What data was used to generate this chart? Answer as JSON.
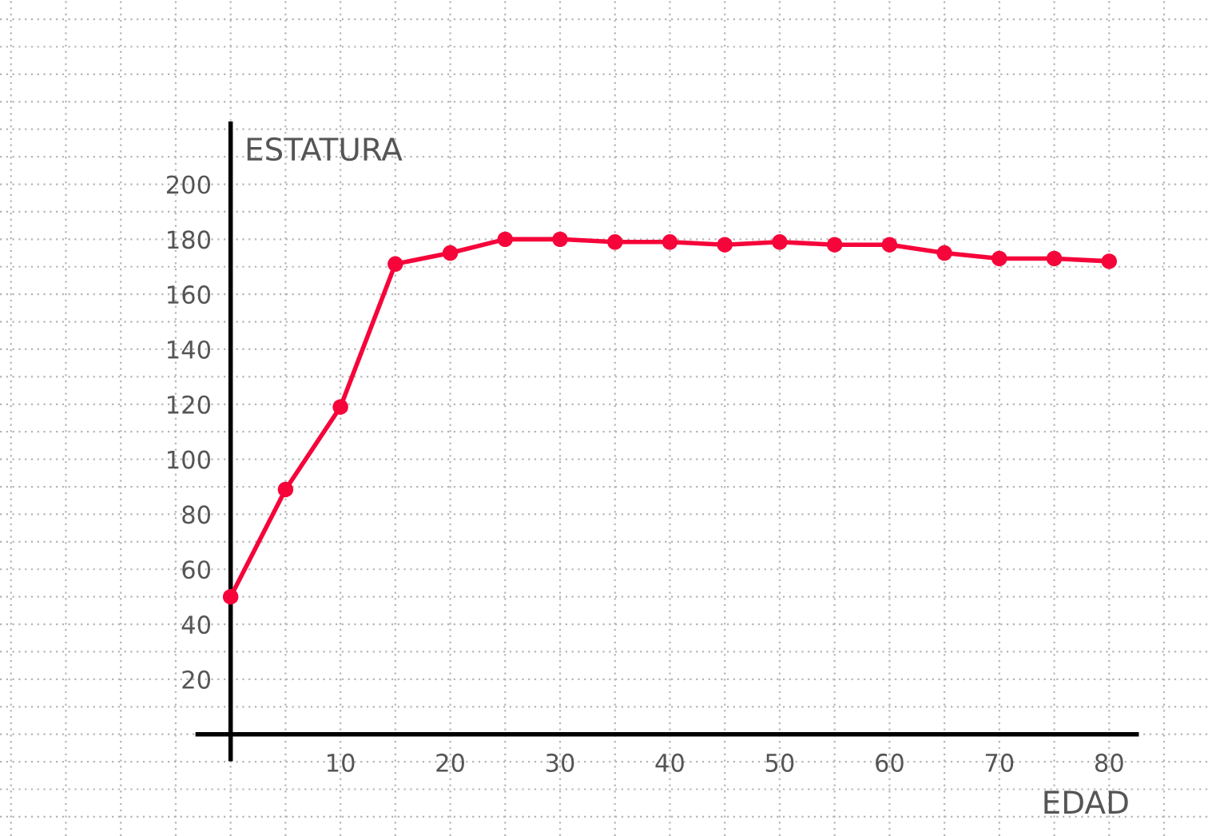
{
  "chart_data": {
    "type": "line",
    "xlabel": "EDAD",
    "ylabel": "ESTATURA",
    "x": [
      0,
      5,
      10,
      15,
      20,
      25,
      30,
      35,
      40,
      45,
      50,
      55,
      60,
      65,
      70,
      75,
      80
    ],
    "series": [
      {
        "color": "#f5053a",
        "values": [
          50,
          89,
          119,
          171,
          175,
          180,
          180,
          179,
          179,
          178,
          179,
          178,
          178,
          175,
          173,
          173,
          172
        ]
      }
    ],
    "xlim": [
      -21,
      89
    ],
    "ylim": [
      -37,
      267
    ],
    "xticks": [
      10,
      20,
      30,
      40,
      50,
      60,
      70,
      80
    ],
    "yticks": [
      20,
      40,
      60,
      80,
      100,
      120,
      140,
      160,
      180,
      200
    ],
    "grid": true,
    "marker": "circle",
    "line_style": "solid"
  }
}
